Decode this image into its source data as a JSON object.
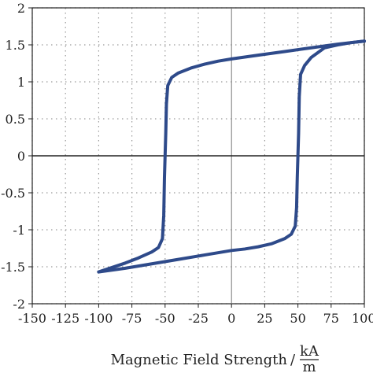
{
  "chart_data": {
    "type": "line",
    "title": "",
    "xlabel": "Magnetic Field Strength",
    "xlabel_unit_numerator": "kA",
    "xlabel_unit_denominator": "m",
    "ylabel": "",
    "xlim": [
      -150,
      100
    ],
    "ylim": [
      -2,
      2
    ],
    "x_ticks": [
      -150,
      -125,
      -100,
      -75,
      -50,
      -25,
      0,
      25,
      50,
      75,
      100
    ],
    "x_tick_labels": [
      "-150",
      "-125",
      "-100",
      "-75",
      "-50",
      "-25",
      "0",
      "25",
      "50",
      "75",
      "100"
    ],
    "y_ticks": [
      -2,
      -1.5,
      -1,
      -0.5,
      0,
      0.5,
      1,
      1.5,
      2
    ],
    "y_tick_labels": [
      "-2",
      "-1.5",
      "-1",
      "-0.5",
      "0",
      "0.5",
      "1",
      "1.5",
      "2"
    ],
    "grid": true,
    "line_color": "#2e4a8a",
    "series": [
      {
        "points": [
          [
            -100,
            -1.57
          ],
          [
            -90,
            -1.51
          ],
          [
            -80,
            -1.45
          ],
          [
            -70,
            -1.38
          ],
          [
            -60,
            -1.3
          ],
          [
            -55,
            -1.24
          ],
          [
            -52,
            -1.12
          ],
          [
            -51,
            -0.8
          ],
          [
            -50.5,
            -0.3
          ],
          [
            -50,
            0
          ],
          [
            -49.5,
            0.3
          ],
          [
            -49,
            0.7
          ],
          [
            -48,
            0.95
          ],
          [
            -45,
            1.06
          ],
          [
            -40,
            1.12
          ],
          [
            -30,
            1.19
          ],
          [
            -20,
            1.24
          ],
          [
            -10,
            1.28
          ],
          [
            0,
            1.31
          ],
          [
            20,
            1.36
          ],
          [
            40,
            1.41
          ],
          [
            60,
            1.46
          ],
          [
            80,
            1.51
          ],
          [
            100,
            1.55
          ]
        ]
      },
      {
        "points": [
          [
            100,
            1.55
          ],
          [
            90,
            1.53
          ],
          [
            80,
            1.5
          ],
          [
            70,
            1.46
          ],
          [
            60,
            1.33
          ],
          [
            55,
            1.22
          ],
          [
            52,
            1.1
          ],
          [
            51,
            0.8
          ],
          [
            50.5,
            0.3
          ],
          [
            50,
            0
          ],
          [
            49.5,
            -0.3
          ],
          [
            49,
            -0.7
          ],
          [
            48,
            -0.95
          ],
          [
            45,
            -1.06
          ],
          [
            40,
            -1.12
          ],
          [
            30,
            -1.19
          ],
          [
            20,
            -1.23
          ],
          [
            10,
            -1.26
          ],
          [
            0,
            -1.28
          ],
          [
            -20,
            -1.34
          ],
          [
            -40,
            -1.4
          ],
          [
            -60,
            -1.46
          ],
          [
            -80,
            -1.52
          ],
          [
            -100,
            -1.57
          ]
        ]
      }
    ]
  }
}
